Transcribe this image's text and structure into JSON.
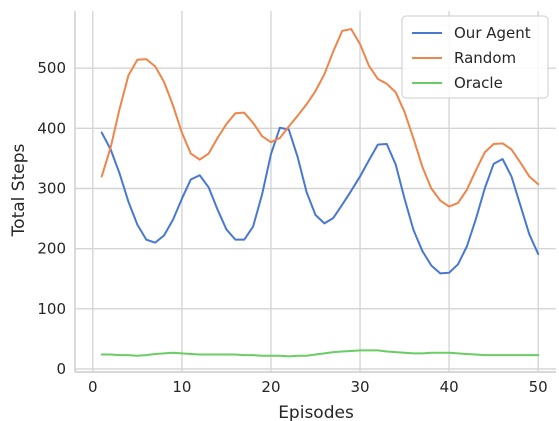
{
  "chart_data": {
    "type": "line",
    "xlabel": "Episodes",
    "ylabel": "Total Steps",
    "xlim": [
      -2,
      52
    ],
    "ylim": [
      -5,
      595
    ],
    "xticks": [
      0,
      10,
      20,
      30,
      40,
      50
    ],
    "yticks": [
      0,
      100,
      200,
      300,
      400,
      500
    ],
    "grid": true,
    "legend_position": "top-right",
    "x": [
      1,
      2,
      3,
      4,
      5,
      6,
      7,
      8,
      9,
      10,
      11,
      12,
      13,
      14,
      15,
      16,
      17,
      18,
      19,
      20,
      21,
      22,
      23,
      24,
      25,
      26,
      27,
      28,
      29,
      30,
      31,
      32,
      33,
      34,
      35,
      36,
      37,
      38,
      39,
      40,
      41,
      42,
      43,
      44,
      45,
      46,
      47,
      48,
      49,
      50
    ],
    "series": [
      {
        "name": "Our Agent",
        "color": "#4878d0",
        "values": [
          393,
          365,
          325,
          278,
          240,
          215,
          210,
          222,
          248,
          283,
          315,
          322,
          302,
          265,
          232,
          215,
          215,
          237,
          290,
          357,
          401,
          398,
          352,
          294,
          256,
          242,
          251,
          273,
          296,
          320,
          347,
          373,
          374,
          340,
          283,
          231,
          196,
          172,
          159,
          160,
          174,
          204,
          249,
          300,
          341,
          349,
          320,
          272,
          224,
          191
        ]
      },
      {
        "name": "Random",
        "color": "#ee854a",
        "values": [
          320,
          368,
          432,
          488,
          514,
          515,
          503,
          477,
          438,
          393,
          358,
          348,
          358,
          384,
          407,
          425,
          426,
          409,
          387,
          377,
          384,
          403,
          421,
          440,
          462,
          490,
          528,
          562,
          565,
          540,
          504,
          482,
          474,
          460,
          427,
          383,
          336,
          300,
          280,
          270,
          276,
          298,
          330,
          360,
          374,
          375,
          365,
          343,
          320,
          307
        ]
      },
      {
        "name": "Oracle",
        "color": "#6acc64",
        "values": [
          24,
          24,
          23,
          23,
          22,
          23,
          25,
          26,
          27,
          26,
          25,
          24,
          24,
          24,
          24,
          24,
          23,
          23,
          22,
          22,
          22,
          21,
          22,
          22,
          24,
          26,
          28,
          29,
          30,
          31,
          31,
          31,
          29,
          28,
          27,
          26,
          26,
          27,
          27,
          27,
          26,
          25,
          24,
          23,
          23,
          23,
          23,
          23,
          23,
          23
        ]
      }
    ]
  }
}
